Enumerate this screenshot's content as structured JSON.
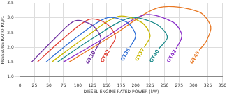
{
  "chart_data": {
    "type": "line",
    "x_label": "DIESEL ENGINE RATED POWER (kW)",
    "y_label": "PRESSURE RATIO P2/P1",
    "xlim": [
      0,
      350
    ],
    "xticks": [
      0,
      25,
      50,
      75,
      100,
      125,
      150,
      175,
      200,
      225,
      250,
      275,
      300,
      325,
      350
    ],
    "ylim": [
      1,
      3.5
    ],
    "yticks": [
      {
        "value": 1,
        "label": "1.0"
      },
      {
        "value": 1.5,
        "label": "1.5"
      },
      {
        "value": 2,
        "label": "2.0"
      },
      {
        "value": 2.5,
        "label": "2.5"
      },
      {
        "value": 3,
        "label": "3.0"
      },
      {
        "value": 3.5,
        "label": "3.5"
      }
    ],
    "grid": true,
    "series": [
      {
        "name": "GT30",
        "color": "#7030a0",
        "x": [
          20,
          60,
          95,
          125,
          140,
          130
        ],
        "values": [
          1.5,
          2.3,
          2.9,
          2.75,
          2.3,
          1.9
        ]
      },
      {
        "name": "GT32",
        "color": "#e03c31",
        "x": [
          30,
          75,
          120,
          150,
          165,
          155
        ],
        "values": [
          1.5,
          2.3,
          2.95,
          2.8,
          2.35,
          1.95
        ]
      },
      {
        "name": "GT35",
        "color": "#2f6fd6",
        "x": [
          45,
          95,
          150,
          185,
          200,
          190
        ],
        "values": [
          1.5,
          2.3,
          3.0,
          2.85,
          2.4,
          2.0
        ]
      },
      {
        "name": "GT37",
        "color": "#c9b800",
        "x": [
          55,
          110,
          170,
          210,
          225,
          215
        ],
        "values": [
          1.5,
          2.3,
          3.05,
          2.85,
          2.4,
          2.0
        ]
      },
      {
        "name": "GT40",
        "color": "#1a8a8a",
        "x": [
          65,
          125,
          190,
          235,
          255,
          240
        ],
        "values": [
          1.5,
          2.3,
          3.0,
          2.8,
          2.35,
          1.95
        ]
      },
      {
        "name": "GT42",
        "color": "#8b2fc9",
        "x": [
          75,
          145,
          215,
          265,
          280,
          270
        ],
        "values": [
          1.5,
          2.3,
          3.1,
          2.85,
          2.4,
          1.95
        ]
      },
      {
        "name": "GT45",
        "color": "#e87722",
        "x": [
          85,
          160,
          240,
          310,
          330,
          322,
          310
        ],
        "values": [
          1.5,
          2.4,
          3.35,
          3.2,
          2.7,
          2.2,
          1.9
        ]
      }
    ]
  }
}
